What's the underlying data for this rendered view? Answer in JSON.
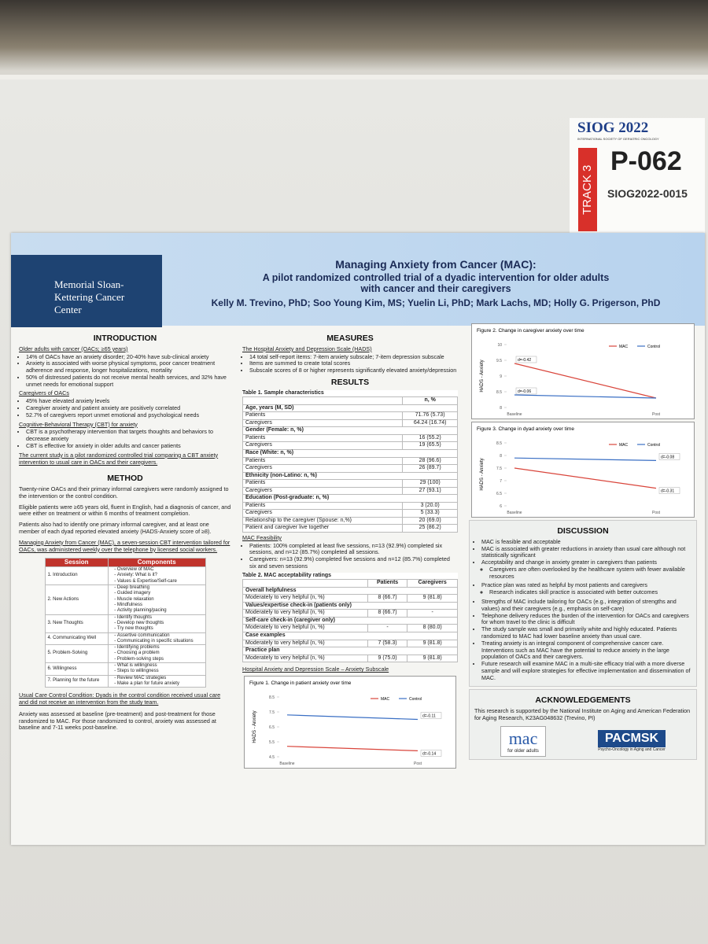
{
  "label_card": {
    "conference": "SIOG 2022",
    "society": "INTERNATIONAL SOCIETY OF GERIATRIC ONCOLOGY",
    "track": "TRACK 3",
    "poster_id": "P-062",
    "abstract_id": "SIOG2022-0015"
  },
  "header": {
    "logo": "Memorial Sloan-Kettering Cancer Center",
    "title": "Managing Anxiety from Cancer (MAC):",
    "subtitle": "A pilot randomized controlled trial of a dyadic intervention for older adults with cancer and their caregivers",
    "authors": "Kelly M. Trevino, PhD; Soo Young Kim, MS; Yuelin Li, PhD; Mark Lachs, MD; Holly G. Prigerson, PhD"
  },
  "introduction": {
    "heading": "INTRODUCTION",
    "blocks": [
      {
        "title": "Older adults with cancer (OACs; ≥65 years)",
        "bullets": [
          "14% of OACs have an anxiety disorder; 20-40% have sub-clinical anxiety",
          "Anxiety is associated with worse physical symptoms, poor cancer treatment adherence and response, longer hospitalizations, mortality",
          "50% of distressed patients do not receive mental health services, and 32% have unmet needs for emotional support"
        ]
      },
      {
        "title": "Caregivers of OACs",
        "bullets": [
          "45% have elevated anxiety levels",
          "Caregiver anxiety and patient anxiety are positively correlated",
          "52.7% of caregivers report unmet emotional and psychological needs"
        ]
      },
      {
        "title": "Cognitive-Behavioral Therapy (CBT) for anxiety",
        "bullets": [
          "CBT is a psychotherapy intervention that targets thoughts and behaviors to decrease anxiety",
          "CBT is effective for anxiety in older adults and cancer patients"
        ]
      }
    ],
    "statement": "The current study is a pilot randomized controlled trial comparing a CBT anxiety intervention to usual care in OACs and their caregivers."
  },
  "method": {
    "heading": "METHOD",
    "paragraphs": [
      "Twenty-nine OACs and their primary informal caregivers were randomly assigned to the intervention or the control condition.",
      "Eligible patients were ≥65 years old, fluent in English, had a diagnosis of cancer, and were either on treatment or within 6 months of treatment completion.",
      "Patients also had to identify one primary informal caregiver, and at least one member of each dyad reported elevated anxiety (HADS-Anxiety score of ≥8)."
    ],
    "intervention": "Managing Anxiety from Cancer (MAC), a seven-session CBT intervention tailored for OACs, was administered weekly over the telephone by licensed social workers.",
    "session_table": {
      "columns": [
        "Session",
        "Components"
      ],
      "rows": [
        {
          "session": "1. Introduction",
          "components": [
            "Overview of MAC",
            "Anxiety: What is it?",
            "Values & Expertise/Self-care"
          ]
        },
        {
          "session": "2. New Actions",
          "components": [
            "Deep breathing",
            "Guided imagery",
            "Muscle relaxation",
            "Mindfulness",
            "Activity planning/pacing"
          ]
        },
        {
          "session": "3. New Thoughts",
          "components": [
            "Identify thoughts",
            "Develop new thoughts",
            "Try new thoughts"
          ]
        },
        {
          "session": "4. Communicating Well",
          "components": [
            "Assertive communication",
            "Communicating in specific situations"
          ]
        },
        {
          "session": "5. Problem-Solving",
          "components": [
            "Identifying problems",
            "Choosing a problem",
            "Problem-solving steps"
          ]
        },
        {
          "session": "6. Willingness",
          "components": [
            "What is willingness",
            "Steps to willingness"
          ]
        },
        {
          "session": "7. Planning for the future",
          "components": [
            "Review MAC strategies",
            "Make a plan for future anxiety"
          ]
        }
      ]
    },
    "control": "Usual Care Control Condition: Dyads in the control condition received usual care and did not receive an intervention from the study team.",
    "assessment": "Anxiety was assessed at baseline (pre-treatment) and post-treatment for those randomized to MAC. For those randomized to control, anxiety was assessed at baseline and 7-11 weeks post-baseline."
  },
  "measures": {
    "heading": "MEASURES",
    "title": "The Hospital Anxiety and Depression Scale (HADS)",
    "bullets": [
      "14 total self-report items: 7-item anxiety subscale; 7-item depression subscale",
      "Items are summed to create total scores",
      "Subscale scores of 8 or higher represents significantly elevated anxiety/depression"
    ]
  },
  "results": {
    "heading": "RESULTS",
    "table1": {
      "title": "Table 1. Sample characteristics",
      "column": "n, %",
      "rows": [
        [
          "Age, years (M, SD)"
        ],
        [
          "Patients",
          "71.76 (5.73)"
        ],
        [
          "Caregivers",
          "64.24 (16.74)"
        ],
        [
          "Gender (Female: n, %)"
        ],
        [
          "Patients",
          "16 (55.2)"
        ],
        [
          "Caregivers",
          "19 (65.5)"
        ],
        [
          "Race (White: n, %)"
        ],
        [
          "Patients",
          "28 (96.6)"
        ],
        [
          "Caregivers",
          "26 (89.7)"
        ],
        [
          "Ethnicity (non-Latino: n, %)"
        ],
        [
          "Patients",
          "29 (100)"
        ],
        [
          "Caregivers",
          "27 (93.1)"
        ],
        [
          "Education (Post-graduate: n, %)"
        ],
        [
          "Patients",
          "3 (20.0)"
        ],
        [
          "Caregivers",
          "5 (33.3)"
        ],
        [
          "Relationship to the caregiver (Spouse: n,%)",
          "20 (69.0)"
        ],
        [
          "Patient and caregiver live together",
          "25 (86.2)"
        ]
      ]
    },
    "feasibility": {
      "title": "MAC Feasibility",
      "bullets": [
        "Patients: 100% completed at least five sessions, n=13 (92.9%) completed six sessions, and n=12 (85.7%) completed all sessions.",
        "Caregivers: n=13 (92.9%) completed five sessions and n=12 (85.7%) completed six and seven sessions"
      ]
    },
    "table2": {
      "title": "Table 2. MAC acceptability ratings",
      "columns": [
        "Patients",
        "Caregivers"
      ],
      "rows": [
        [
          "Overall helpfulness"
        ],
        [
          "Moderately to very helpful (n, %)",
          "8 (66.7)",
          "9 (81.8)"
        ],
        [
          "Values/expertise check-in (patients only)"
        ],
        [
          "Moderately to very helpful (n, %)",
          "8 (66.7)",
          "-"
        ],
        [
          "Self-care check-in (caregiver only)"
        ],
        [
          "Moderately to very helpful (n, %)",
          "-",
          "8 (80.0)"
        ],
        [
          "Case examples"
        ],
        [
          "Moderately to very helpful (n, %)",
          "7 (58.3)",
          "9 (81.8)"
        ],
        [
          "Practice plan"
        ],
        [
          "Moderately to very helpful (n, %)",
          "9 (75.0)",
          "9 (81.8)"
        ]
      ]
    },
    "hads_title": "Hospital Anxiety and Depression Scale – Anxiety Subscale",
    "figures": [
      {
        "type": "line",
        "title": "Figure 1. Change in patient anxiety over time",
        "y_label": "HADS - Anxiety",
        "categories": [
          "Baseline",
          "Post"
        ],
        "ylim": [
          4.5,
          8.5
        ],
        "yticks": [
          4.5,
          5.5,
          6.5,
          7.5,
          8.5
        ],
        "series": [
          {
            "name": "MAC",
            "color": "#d9453b",
            "values": [
              5.2,
              4.9
            ],
            "effect": "d=-0.14"
          },
          {
            "name": "Control",
            "color": "#3a6fc4",
            "values": [
              7.3,
              7.0
            ],
            "effect": "d=-0.11"
          }
        ]
      },
      {
        "type": "line",
        "title": "Figure 2. Change in caregiver anxiety over time",
        "y_label": "HADS - Anxiety",
        "categories": [
          "Baseline",
          "Post"
        ],
        "ylim": [
          8,
          10
        ],
        "yticks": [
          8,
          8.5,
          9,
          9.5,
          10
        ],
        "series": [
          {
            "name": "MAC",
            "color": "#d9453b",
            "values": [
              9.4,
              8.3
            ],
            "effect": "d=-0.42"
          },
          {
            "name": "Control",
            "color": "#3a6fc4",
            "values": [
              8.4,
              8.3
            ],
            "effect": "d=-0.06"
          }
        ]
      },
      {
        "type": "line",
        "title": "Figure 3. Change in dyad anxiety over time",
        "y_label": "HADS - Anxiety",
        "categories": [
          "Baseline",
          "Post"
        ],
        "ylim": [
          6,
          8.5
        ],
        "yticks": [
          6,
          6.5,
          7,
          7.5,
          8,
          8.5
        ],
        "series": [
          {
            "name": "MAC",
            "color": "#d9453b",
            "values": [
              7.5,
              6.7
            ],
            "effect": "d=-0.31"
          },
          {
            "name": "Control",
            "color": "#3a6fc4",
            "values": [
              7.9,
              7.8
            ],
            "effect": "d=-0.08"
          }
        ]
      }
    ]
  },
  "discussion": {
    "heading": "DISCUSSION",
    "bullets": [
      {
        "text": "MAC is feasible and acceptable"
      },
      {
        "text": "MAC is associated with greater reductions in anxiety than usual care although not statistically significant"
      },
      {
        "text": "Acceptability and change in anxiety greater in caregivers than patients",
        "sub": [
          "Caregivers are often overlooked by the healthcare system with fewer available resources"
        ]
      },
      {
        "text": "Practice plan was rated as helpful by most patients and caregivers",
        "sub": [
          "Research indicates skill practice is associated with better outcomes"
        ]
      },
      {
        "text": "Strengths of MAC include tailoring for OACs (e.g., integration of strengths and values) and their caregivers (e.g., emphasis on self-care)"
      },
      {
        "text": "Telephone delivery reduces the burden of the intervention for OACs and caregivers for whom travel to the clinic is difficult"
      },
      {
        "text": "The study sample was small and primarily white and highly educated. Patients randomized to MAC had lower baseline anxiety than usual care."
      },
      {
        "text": "Treating anxiety is an integral component of comprehensive cancer care. Interventions such as MAC have the potential to reduce anxiety in the large population of OACs and their caregivers."
      },
      {
        "text": "Future research will examine MAC in a multi-site efficacy trial with a more diverse sample and will explore strategies for effective implementation and dissemination of MAC."
      }
    ]
  },
  "acknowledgements": {
    "heading": "ACKNOWLEDGEMENTS",
    "text": "This research is supported by the National Institute on Aging and American Federation for Aging Research, K23AG048632 (Trevino, PI)",
    "logo1": "mac",
    "logo1_caption": "for older adults",
    "logo2": "PACMSK",
    "logo2_caption": "Psycho-Oncology in Aging and Cancer"
  }
}
